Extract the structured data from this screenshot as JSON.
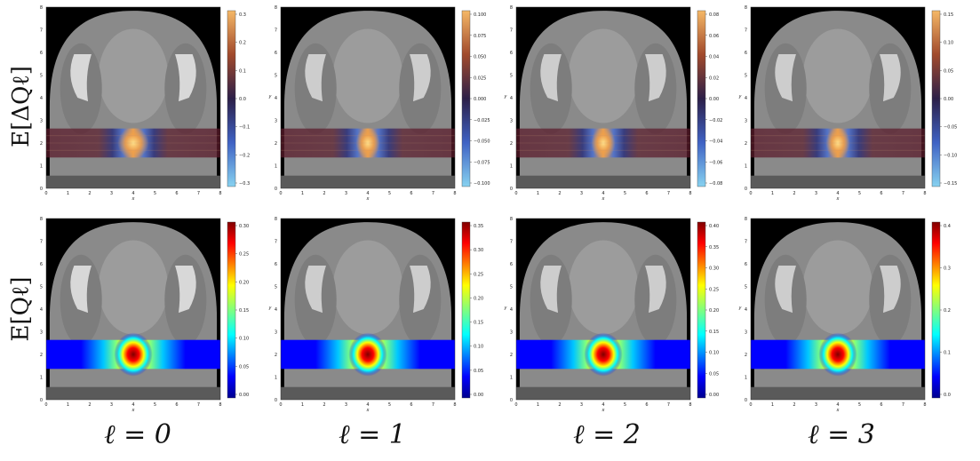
{
  "row_labels": [
    "E[ΔQℓ]",
    "E[Qℓ]"
  ],
  "col_labels": [
    "ℓ = 0",
    "ℓ = 1",
    "ℓ = 2",
    "ℓ = 3"
  ],
  "axis": {
    "xlabel": "x",
    "ylabel": "y",
    "ticks": [
      "0",
      "1",
      "2",
      "3",
      "4",
      "5",
      "6",
      "7",
      "8"
    ]
  },
  "diverging_colorbars": [
    [
      "0.3",
      "0.2",
      "0.1",
      "0.0",
      "−0.1",
      "−0.2",
      "−0.3"
    ],
    [
      "0.100",
      "0.075",
      "0.050",
      "0.025",
      "0.000",
      "−0.025",
      "−0.050",
      "−0.075",
      "−0.100"
    ],
    [
      "0.08",
      "0.06",
      "0.04",
      "0.02",
      "0.00",
      "−0.02",
      "−0.04",
      "−0.06",
      "−0.08"
    ],
    [
      "0.15",
      "0.10",
      "0.05",
      "0.00",
      "−0.05",
      "−0.10",
      "−0.15"
    ]
  ],
  "jet_colorbars": [
    [
      "0.30",
      "0.25",
      "0.20",
      "0.15",
      "0.10",
      "0.05",
      "0.00"
    ],
    [
      "0.35",
      "0.30",
      "0.25",
      "0.20",
      "0.15",
      "0.10",
      "0.05",
      "0.00"
    ],
    [
      "0.40",
      "0.35",
      "0.30",
      "0.25",
      "0.20",
      "0.15",
      "0.10",
      "0.05",
      "0.00"
    ],
    [
      "0.4",
      "0.3",
      "0.2",
      "0.1",
      "0.0"
    ]
  ],
  "colors": {
    "jet_high": "#800000",
    "jet_low": "#00008f",
    "div_high": "#f5b867",
    "div_low": "#87d2f0",
    "background": "#000000"
  }
}
